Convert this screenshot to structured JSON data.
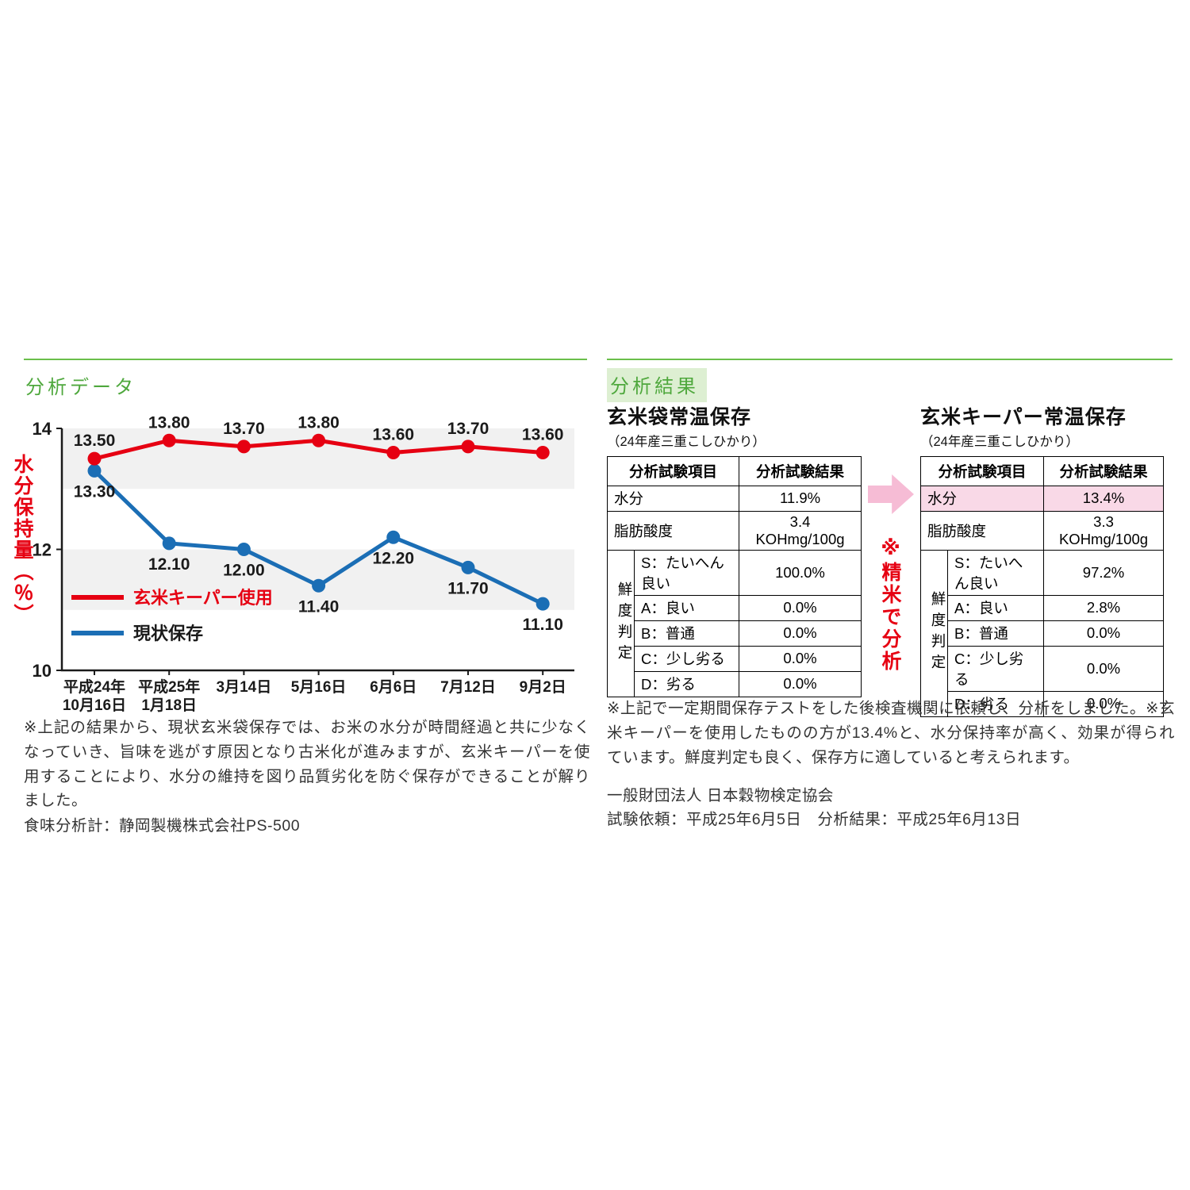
{
  "chart_data": {
    "type": "line",
    "title": "",
    "ylabel": "水分保持量（％）",
    "ylim": [
      10,
      14
    ],
    "yticks": [
      14,
      12,
      10
    ],
    "bands": [
      [
        13,
        14
      ],
      [
        11,
        12
      ]
    ],
    "grid": "banded-horizontal",
    "legend_position": "inside-lower-left",
    "categories": [
      "平成24年\n10月16日",
      "平成25年\n1月18日",
      "3月14日",
      "5月16日",
      "6月6日",
      "7月12日",
      "9月2日"
    ],
    "series": [
      {
        "name": "玄米キーパー使用",
        "color": "#e60012",
        "label_color": "#e60012",
        "label_position": "above",
        "values": [
          13.5,
          13.8,
          13.7,
          13.8,
          13.6,
          13.7,
          13.6
        ]
      },
      {
        "name": "現状保存",
        "color": "#1b6eb5",
        "label_color": "#1a1a1a",
        "label_position": "below",
        "values": [
          13.3,
          12.1,
          12.0,
          11.4,
          12.2,
          11.7,
          11.1
        ]
      }
    ]
  },
  "left": {
    "section_title": "分析データ",
    "note": "※上記の結果から、現状玄米袋保存では、お米の水分が時間経過と共に少なくなっていき、旨味を逃がす原因となり古米化が進みますが、玄米キーパーを使用することにより、水分の維持を図り品質劣化を防ぐ保存ができることが解りました。",
    "analyzer": "食味分析計：静岡製機株式会社PS-500"
  },
  "results": {
    "section_title": "分析結果",
    "precision_note": "※精米で分析",
    "tables": [
      {
        "title": "玄米袋常温保存",
        "subtitle": "（24年産三重こしひかり）",
        "col_headers": [
          "分析試験項目",
          "分析試験結果"
        ],
        "moisture_label": "水分",
        "moisture_value": "11.9%",
        "fat_label": "脂肪酸度",
        "fat_value": "3.4 KOHmg/100g",
        "freshness_label": "鮮度判定",
        "grades": [
          {
            "label": "S：たいへん良い",
            "value": "100.0%"
          },
          {
            "label": "A：良い",
            "value": "0.0%"
          },
          {
            "label": "B：普通",
            "value": "0.0%"
          },
          {
            "label": "C：少し劣る",
            "value": "0.0%"
          },
          {
            "label": "D：劣る",
            "value": "0.0%"
          }
        ]
      },
      {
        "title": "玄米キーパー常温保存",
        "subtitle": "（24年産三重こしひかり）",
        "col_headers": [
          "分析試験項目",
          "分析試験結果"
        ],
        "moisture_label": "水分",
        "moisture_value": "13.4%",
        "fat_label": "脂肪酸度",
        "fat_value": "3.3 KOHmg/100g",
        "freshness_label": "鮮度判定",
        "grades": [
          {
            "label": "S：たいへん良い",
            "value": "97.2%"
          },
          {
            "label": "A：良い",
            "value": "2.8%"
          },
          {
            "label": "B：普通",
            "value": "0.0%"
          },
          {
            "label": "C：少し劣る",
            "value": "0.0%"
          },
          {
            "label": "D：劣る",
            "value": "0.0%"
          }
        ]
      }
    ],
    "note": "※上記で一定期間保存テストをした後検査機関に依頼し、分析をしました。※玄米キーパーを使用したものの方が13.4%と、水分保持率が高く、効果が得られています。鮮度判定も良く、保存方に適していると考えられます。",
    "org": "一般財団法人 日本穀物検定協会",
    "dates": "試験依頼：平成25年6月5日　分析結果：平成25年6月13日"
  }
}
